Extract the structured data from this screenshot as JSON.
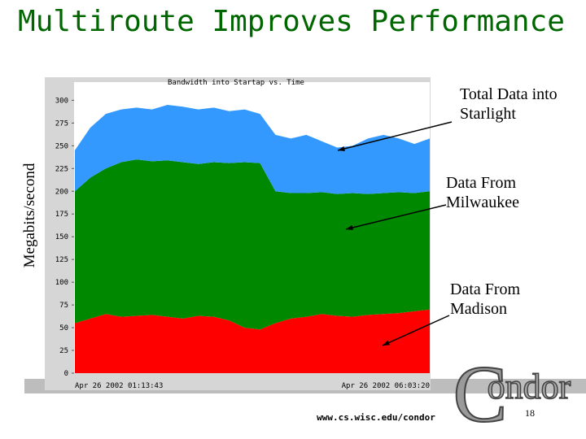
{
  "slide_title": "Multiroute Improves Performance",
  "url": "www.cs.wisc.edu/condor",
  "page_number": "18",
  "logo": [
    "C",
    "ondor"
  ],
  "chart_data": {
    "type": "stacked_area",
    "title": "Bandwidth into Startap vs. Time",
    "y_label": "Megabits/second",
    "categories": [
      "Apr 26 2002 01:13:43",
      null,
      null,
      null,
      null,
      null,
      null,
      null,
      null,
      null,
      null,
      null,
      null,
      null,
      null,
      null,
      null,
      null,
      null,
      null,
      null,
      null,
      null,
      "Apr 26 2002 06:03:20"
    ],
    "series": [
      {
        "name": "Data From Madison",
        "color": "#ff0000",
        "values": [
          55,
          60,
          65,
          62,
          63,
          64,
          62,
          60,
          63,
          62,
          58,
          50,
          48,
          55,
          60,
          62,
          65,
          63,
          62,
          64,
          65,
          66,
          68,
          70
        ]
      },
      {
        "name": "Data From Milwaukee",
        "color": "#008800",
        "values": [
          145,
          155,
          160,
          170,
          172,
          169,
          172,
          172,
          167,
          170,
          173,
          182,
          183,
          145,
          138,
          136,
          134,
          134,
          136,
          133,
          133,
          133,
          130,
          130
        ]
      },
      {
        "name": "Total Data into Starlight",
        "color": "#3399ff",
        "values": [
          45,
          55,
          60,
          58,
          57,
          57,
          61,
          61,
          60,
          60,
          57,
          58,
          54,
          62,
          60,
          64,
          56,
          51,
          52,
          61,
          64,
          59,
          54,
          58
        ]
      }
    ],
    "ylim": [
      0,
      320
    ],
    "yticks": [
      0,
      25,
      50,
      75,
      100,
      125,
      150,
      175,
      200,
      225,
      250,
      275,
      300
    ]
  }
}
